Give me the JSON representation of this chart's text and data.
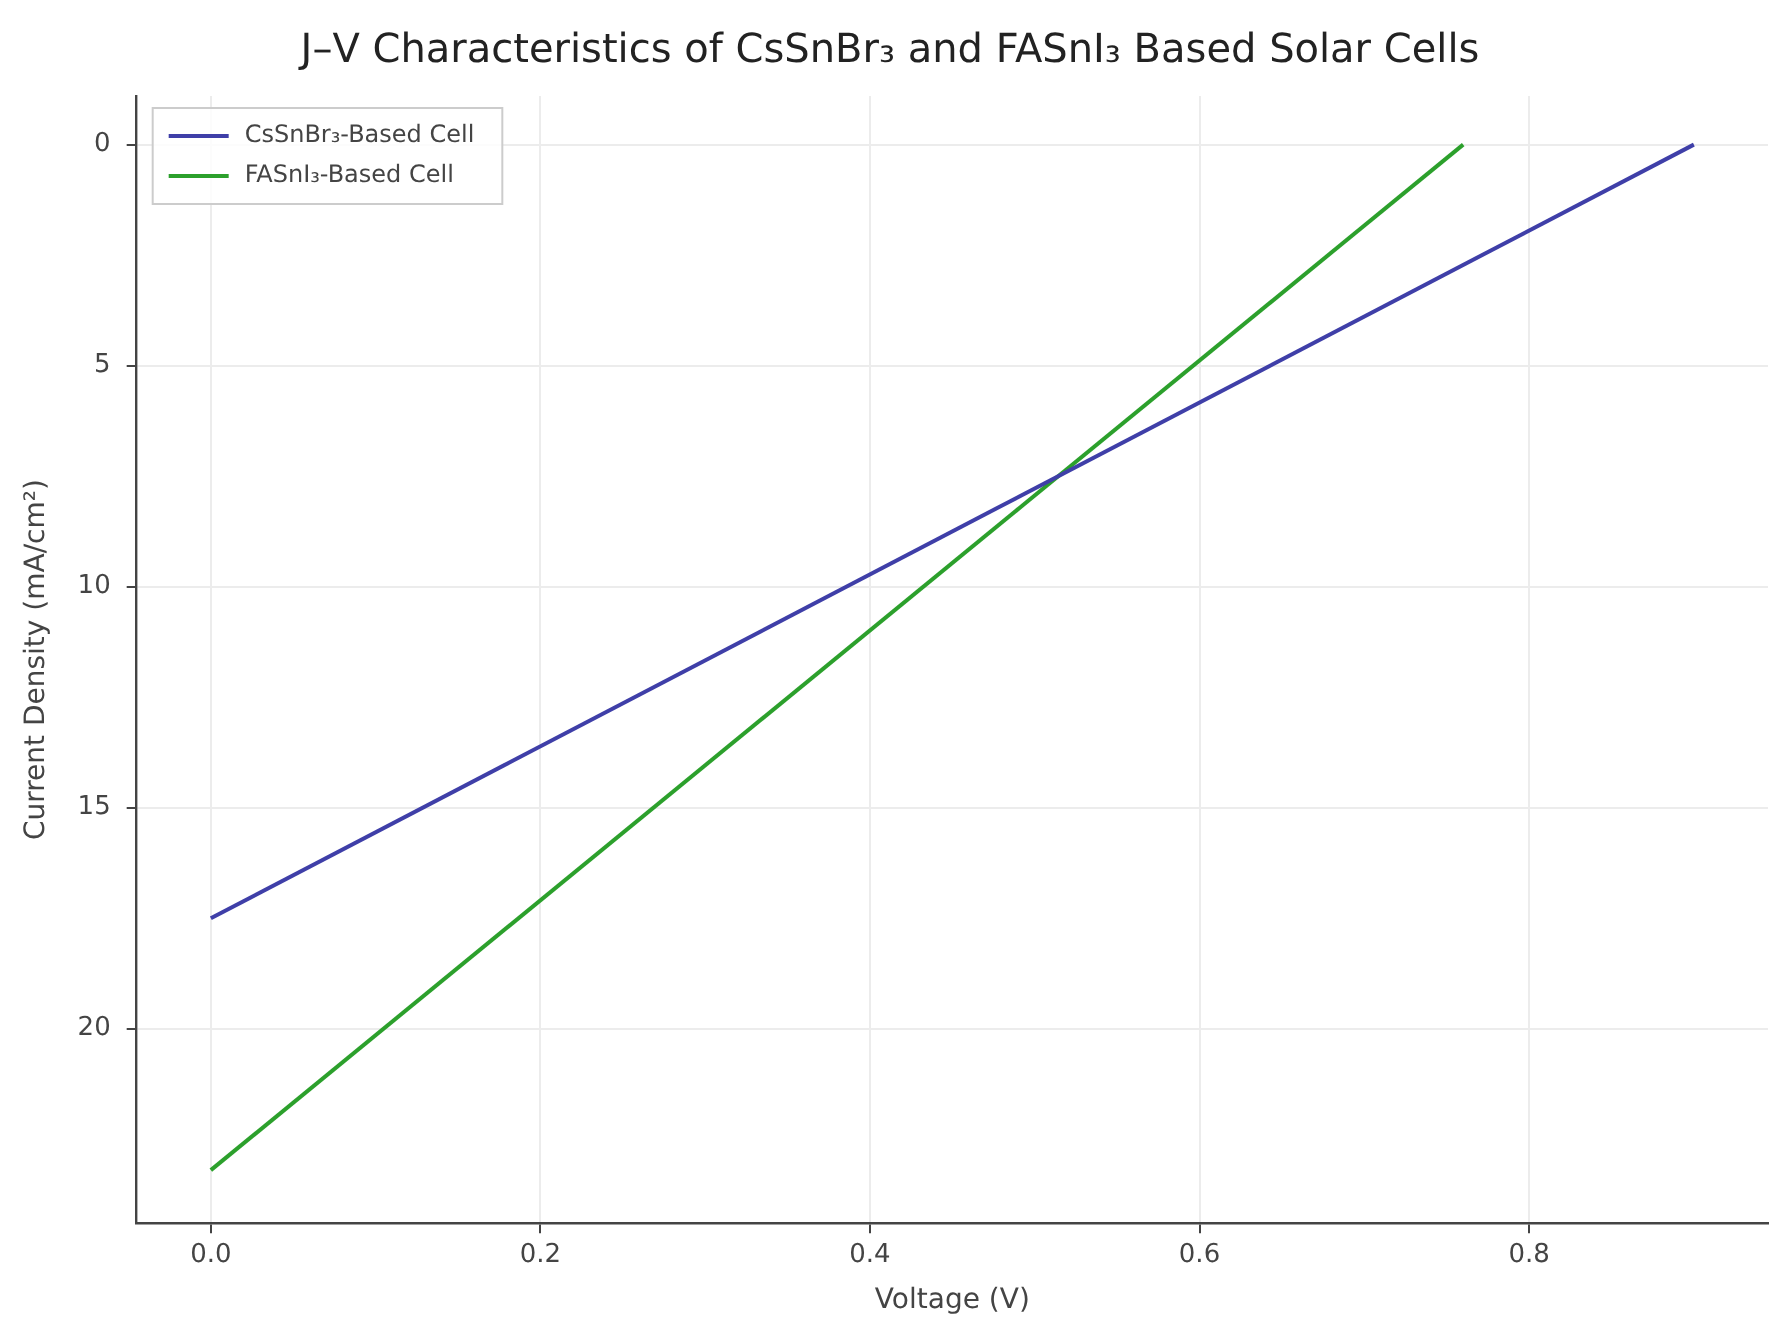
{
  "chart_data": {
    "type": "line",
    "title": "J–V Characteristics of CsSnBr₃ and FASnI₃ Based Solar Cells",
    "xlabel": "Voltage (V)",
    "ylabel": "Current Density (mA/cm²)",
    "series": [
      {
        "name": "CsSnBr₃-Based Cell",
        "color": "#3f3fa8",
        "x": [
          0,
          0.9
        ],
        "values": [
          17.5,
          0
        ]
      },
      {
        "name": "FASnI₃-Based Cell",
        "color": "#2ca02c",
        "x": [
          0,
          0.76
        ],
        "values": [
          23.2,
          0
        ]
      }
    ],
    "xlim": [
      -0.045,
      0.945
    ],
    "xticks": [
      {
        "value": 0,
        "label": "0.0"
      },
      {
        "value": 0.2,
        "label": "0.2"
      },
      {
        "value": 0.4,
        "label": "0.4"
      },
      {
        "value": 0.6,
        "label": "0.6"
      },
      {
        "value": 0.8,
        "label": "0.8"
      }
    ],
    "ylim": [
      24.4,
      -1.1
    ],
    "yticks": [
      0,
      5,
      10,
      15,
      20
    ],
    "grid": true,
    "legend": "top left",
    "marker": "none",
    "line_style": "solid"
  }
}
